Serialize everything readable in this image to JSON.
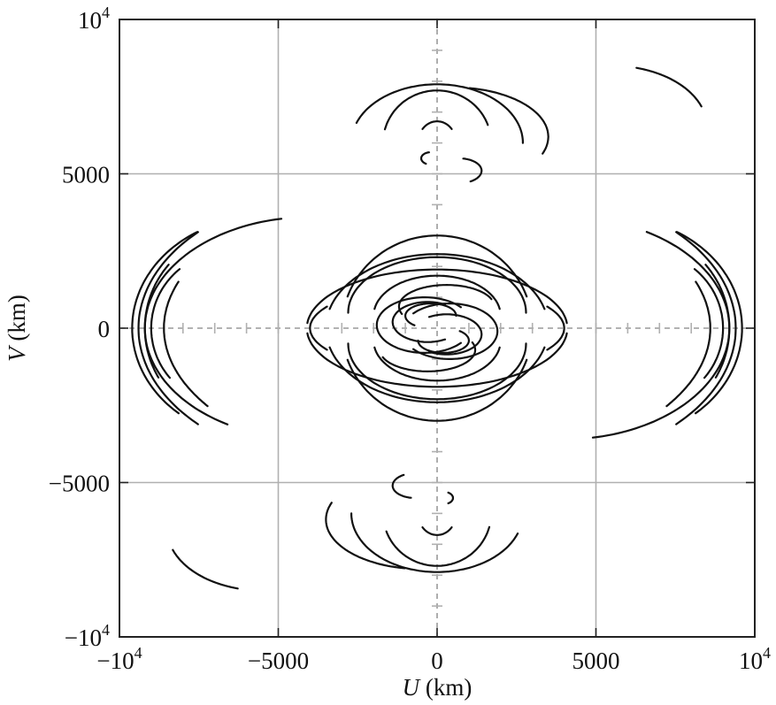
{
  "chart_data": {
    "type": "scatter",
    "title": "",
    "xlabel_italic": "U",
    "xlabel_unit": " (km)",
    "ylabel_italic": "V",
    "ylabel_unit": " (km)",
    "xlim": [
      -10000,
      10000
    ],
    "ylim": [
      -10000,
      10000
    ],
    "grid": true,
    "xticks": [
      {
        "value": -10000,
        "base": "−10",
        "exp": "4"
      },
      {
        "value": -5000,
        "base": "−5000",
        "exp": ""
      },
      {
        "value": 0,
        "base": "0",
        "exp": ""
      },
      {
        "value": 5000,
        "base": "5000",
        "exp": ""
      },
      {
        "value": 10000,
        "base": "10",
        "exp": "4"
      }
    ],
    "yticks": [
      {
        "value": 10000,
        "base": "10",
        "exp": "4"
      },
      {
        "value": 5000,
        "base": "5000",
        "exp": ""
      },
      {
        "value": 0,
        "base": "0",
        "exp": ""
      },
      {
        "value": -5000,
        "base": "−5000",
        "exp": ""
      },
      {
        "value": -10000,
        "base": "−10",
        "exp": "4"
      }
    ],
    "tracks": [
      {
        "cx": 0,
        "cy": 0,
        "a": 3000,
        "b": 3000,
        "t0": 20,
        "t1": 160
      },
      {
        "cx": 0,
        "cy": 0,
        "a": 3000,
        "b": 3000,
        "t0": 200,
        "t1": 340
      },
      {
        "cx": 0,
        "cy": 0,
        "a": 4100,
        "b": 1900,
        "t0": 5,
        "t1": 175
      },
      {
        "cx": 0,
        "cy": 0,
        "a": 4100,
        "b": 1900,
        "t0": 185,
        "t1": 355
      },
      {
        "cx": 0,
        "cy": 0,
        "a": 3500,
        "b": 2400,
        "t0": 15,
        "t1": 165
      },
      {
        "cx": 0,
        "cy": 0,
        "a": 3500,
        "b": 2400,
        "t0": 195,
        "t1": 345
      },
      {
        "cx": 0,
        "cy": 500,
        "a": 2800,
        "b": 1800,
        "t0": 0,
        "t1": 180
      },
      {
        "cx": 0,
        "cy": -500,
        "a": 2800,
        "b": 1800,
        "t0": 180,
        "t1": 360
      },
      {
        "cx": 0,
        "cy": 400,
        "a": 2000,
        "b": 1300,
        "t0": 10,
        "t1": 170
      },
      {
        "cx": 0,
        "cy": -400,
        "a": 2000,
        "b": 1300,
        "t0": 190,
        "t1": 350
      },
      {
        "cx": -400,
        "cy": 100,
        "a": 1500,
        "b": 900,
        "t0": 40,
        "t1": 320
      },
      {
        "cx": 400,
        "cy": -100,
        "a": 1500,
        "b": 900,
        "t0": 220,
        "t1": 500
      },
      {
        "cx": -300,
        "cy": 200,
        "a": 1100,
        "b": 650,
        "t0": 60,
        "t1": 300
      },
      {
        "cx": 300,
        "cy": -200,
        "a": 1100,
        "b": 650,
        "t0": 240,
        "t1": 480
      },
      {
        "cx": -200,
        "cy": 400,
        "a": 800,
        "b": 400,
        "t0": 0,
        "t1": 230
      },
      {
        "cx": 200,
        "cy": -400,
        "a": 800,
        "b": 400,
        "t0": 180,
        "t1": 410
      },
      {
        "cx": 300,
        "cy": 700,
        "a": 1500,
        "b": 700,
        "t0": 20,
        "t1": 200
      },
      {
        "cx": -300,
        "cy": -700,
        "a": 1500,
        "b": 700,
        "t0": 200,
        "t1": 380
      },
      {
        "cx": 0,
        "cy": 0,
        "a": 4000,
        "b": 1400,
        "t0": 150,
        "t1": 210
      },
      {
        "cx": 0,
        "cy": 0,
        "a": 4000,
        "b": 1400,
        "t0": 330,
        "t1": 390
      },
      {
        "cx": 0,
        "cy": 6000,
        "a": 1700,
        "b": 1700,
        "t0": 20,
        "t1": 165
      },
      {
        "cx": 0,
        "cy": 6000,
        "a": 2700,
        "b": 1900,
        "t0": 0,
        "t1": 160
      },
      {
        "cx": 500,
        "cy": 6200,
        "a": 3000,
        "b": 1600,
        "t0": -20,
        "t1": 80
      },
      {
        "cx": 0,
        "cy": 6000,
        "a": 600,
        "b": 700,
        "t0": 40,
        "t1": 140
      },
      {
        "cx": 700,
        "cy": 5100,
        "a": 700,
        "b": 400,
        "t0": -60,
        "t1": 80
      },
      {
        "cx": -200,
        "cy": 5500,
        "a": 300,
        "b": 200,
        "t0": 100,
        "t1": 240
      },
      {
        "cx": 0,
        "cy": -6000,
        "a": 1700,
        "b": 1700,
        "t0": 200,
        "t1": 345
      },
      {
        "cx": 0,
        "cy": -6000,
        "a": 2700,
        "b": 1900,
        "t0": 180,
        "t1": 340
      },
      {
        "cx": -500,
        "cy": -6200,
        "a": 3000,
        "b": 1600,
        "t0": 160,
        "t1": 260
      },
      {
        "cx": 0,
        "cy": -6000,
        "a": 600,
        "b": 700,
        "t0": 220,
        "t1": 320
      },
      {
        "cx": -700,
        "cy": -5100,
        "a": 700,
        "b": 400,
        "t0": 120,
        "t1": 260
      },
      {
        "cx": 200,
        "cy": -5500,
        "a": 300,
        "b": 200,
        "t0": -60,
        "t1": 60
      },
      {
        "cx": -4000,
        "cy": 0,
        "a": 5200,
        "b": 3600,
        "t0": 100,
        "t1": 240
      },
      {
        "cx": -5500,
        "cy": 0,
        "a": 4100,
        "b": 3600,
        "t0": 120,
        "t1": 230
      },
      {
        "cx": -6000,
        "cy": 0,
        "a": 3200,
        "b": 3200,
        "t0": 140,
        "t1": 210
      },
      {
        "cx": -3000,
        "cy": 0,
        "a": 6400,
        "b": 4400,
        "t0": 135,
        "t1": 225
      },
      {
        "cx": -1000,
        "cy": 0,
        "a": 7600,
        "b": 4400,
        "t0": 160,
        "t1": 215
      },
      {
        "cx": -6500,
        "cy": 0,
        "a": 2500,
        "b": 2500,
        "t0": 130,
        "t1": 220
      },
      {
        "cx": 4000,
        "cy": 0,
        "a": 5200,
        "b": 3600,
        "t0": -80,
        "t1": 60
      },
      {
        "cx": 5500,
        "cy": 0,
        "a": 4100,
        "b": 3600,
        "t0": -50,
        "t1": 60
      },
      {
        "cx": 6000,
        "cy": 0,
        "a": 3200,
        "b": 3200,
        "t0": -30,
        "t1": 40
      },
      {
        "cx": 3000,
        "cy": 0,
        "a": 6400,
        "b": 4400,
        "t0": -45,
        "t1": 45
      },
      {
        "cx": 1000,
        "cy": 0,
        "a": 7600,
        "b": 4400,
        "t0": -35,
        "t1": 20
      },
      {
        "cx": 6500,
        "cy": 0,
        "a": 2500,
        "b": 2500,
        "t0": -40,
        "t1": 50
      },
      {
        "cx": 5500,
        "cy": 6500,
        "a": 3000,
        "b": 2000,
        "t0": 20,
        "t1": 75
      },
      {
        "cx": -5500,
        "cy": -6500,
        "a": 3000,
        "b": 2000,
        "t0": 200,
        "t1": 255
      }
    ]
  }
}
